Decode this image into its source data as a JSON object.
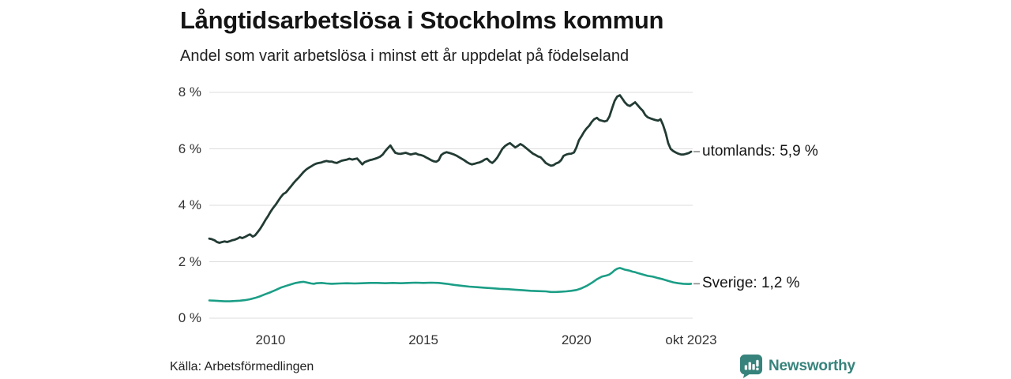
{
  "header": {
    "title": "Långtidsarbetslösa i Stockholms kommun",
    "subtitle": "Andel som varit arbetslösa i minst ett år uppdelat på födelseland"
  },
  "footer": {
    "source": "Källa: Arbetsförmedlingen",
    "brand": "Newsworthy",
    "brand_color": "#37837c"
  },
  "chart_data": {
    "type": "line",
    "title": "Långtidsarbetslösa i Stockholms kommun",
    "subtitle": "Andel som varit arbetslösa i minst ett år uppdelat på födelseland",
    "source": "Källa: Arbetsförmedlingen",
    "grid": true,
    "grid_color": "#dcdcdc",
    "connector_color": "#8a8a8a",
    "x_range": [
      2008.0,
      2023.75
    ],
    "y_range": [
      0,
      8
    ],
    "y_ticks": [
      {
        "value": 0,
        "label": "0 %"
      },
      {
        "value": 2,
        "label": "2 %"
      },
      {
        "value": 4,
        "label": "4 %"
      },
      {
        "value": 6,
        "label": "6 %"
      },
      {
        "value": 8,
        "label": "8 %"
      }
    ],
    "x_ticks": [
      {
        "value": 2010,
        "label": "2010"
      },
      {
        "value": 2015,
        "label": "2015"
      },
      {
        "value": 2020,
        "label": "2020"
      },
      {
        "value": 2023.75,
        "label": "okt 2023"
      }
    ],
    "legend_position": "right-end-labels",
    "series": [
      {
        "name": "utomlands",
        "end_label": "utomlands: 5,9 %",
        "last_value": 5.9,
        "color": "#223b34",
        "stroke_width": 2.8,
        "points": [
          [
            2008.0,
            2.82
          ],
          [
            2008.08,
            2.8
          ],
          [
            2008.17,
            2.76
          ],
          [
            2008.25,
            2.7
          ],
          [
            2008.33,
            2.67
          ],
          [
            2008.42,
            2.7
          ],
          [
            2008.5,
            2.72
          ],
          [
            2008.58,
            2.7
          ],
          [
            2008.67,
            2.73
          ],
          [
            2008.75,
            2.76
          ],
          [
            2008.83,
            2.78
          ],
          [
            2008.92,
            2.82
          ],
          [
            2009.0,
            2.87
          ],
          [
            2009.08,
            2.84
          ],
          [
            2009.17,
            2.88
          ],
          [
            2009.25,
            2.93
          ],
          [
            2009.33,
            2.97
          ],
          [
            2009.42,
            2.89
          ],
          [
            2009.5,
            2.94
          ],
          [
            2009.58,
            3.05
          ],
          [
            2009.67,
            3.18
          ],
          [
            2009.75,
            3.32
          ],
          [
            2009.83,
            3.47
          ],
          [
            2009.92,
            3.62
          ],
          [
            2010.0,
            3.77
          ],
          [
            2010.08,
            3.9
          ],
          [
            2010.17,
            4.02
          ],
          [
            2010.25,
            4.15
          ],
          [
            2010.33,
            4.28
          ],
          [
            2010.42,
            4.4
          ],
          [
            2010.5,
            4.45
          ],
          [
            2010.58,
            4.55
          ],
          [
            2010.67,
            4.67
          ],
          [
            2010.75,
            4.78
          ],
          [
            2010.83,
            4.88
          ],
          [
            2010.92,
            4.98
          ],
          [
            2011.0,
            5.08
          ],
          [
            2011.08,
            5.18
          ],
          [
            2011.17,
            5.27
          ],
          [
            2011.25,
            5.33
          ],
          [
            2011.33,
            5.38
          ],
          [
            2011.42,
            5.44
          ],
          [
            2011.5,
            5.48
          ],
          [
            2011.58,
            5.5
          ],
          [
            2011.67,
            5.52
          ],
          [
            2011.75,
            5.55
          ],
          [
            2011.83,
            5.57
          ],
          [
            2011.92,
            5.55
          ],
          [
            2012.0,
            5.55
          ],
          [
            2012.08,
            5.52
          ],
          [
            2012.17,
            5.5
          ],
          [
            2012.25,
            5.54
          ],
          [
            2012.33,
            5.58
          ],
          [
            2012.42,
            5.6
          ],
          [
            2012.5,
            5.62
          ],
          [
            2012.58,
            5.65
          ],
          [
            2012.67,
            5.62
          ],
          [
            2012.75,
            5.64
          ],
          [
            2012.83,
            5.66
          ],
          [
            2012.92,
            5.55
          ],
          [
            2013.0,
            5.45
          ],
          [
            2013.08,
            5.53
          ],
          [
            2013.17,
            5.57
          ],
          [
            2013.25,
            5.6
          ],
          [
            2013.33,
            5.62
          ],
          [
            2013.42,
            5.65
          ],
          [
            2013.5,
            5.68
          ],
          [
            2013.58,
            5.72
          ],
          [
            2013.67,
            5.8
          ],
          [
            2013.75,
            5.92
          ],
          [
            2013.83,
            6.02
          ],
          [
            2013.92,
            6.12
          ],
          [
            2014.0,
            5.98
          ],
          [
            2014.08,
            5.86
          ],
          [
            2014.17,
            5.83
          ],
          [
            2014.25,
            5.82
          ],
          [
            2014.33,
            5.84
          ],
          [
            2014.42,
            5.86
          ],
          [
            2014.5,
            5.83
          ],
          [
            2014.58,
            5.8
          ],
          [
            2014.67,
            5.82
          ],
          [
            2014.75,
            5.84
          ],
          [
            2014.83,
            5.8
          ],
          [
            2014.92,
            5.78
          ],
          [
            2015.0,
            5.75
          ],
          [
            2015.08,
            5.7
          ],
          [
            2015.17,
            5.65
          ],
          [
            2015.25,
            5.6
          ],
          [
            2015.33,
            5.56
          ],
          [
            2015.42,
            5.54
          ],
          [
            2015.5,
            5.6
          ],
          [
            2015.58,
            5.78
          ],
          [
            2015.67,
            5.85
          ],
          [
            2015.75,
            5.88
          ],
          [
            2015.83,
            5.86
          ],
          [
            2015.92,
            5.83
          ],
          [
            2016.0,
            5.8
          ],
          [
            2016.08,
            5.76
          ],
          [
            2016.17,
            5.7
          ],
          [
            2016.25,
            5.65
          ],
          [
            2016.33,
            5.6
          ],
          [
            2016.42,
            5.53
          ],
          [
            2016.5,
            5.48
          ],
          [
            2016.58,
            5.45
          ],
          [
            2016.67,
            5.47
          ],
          [
            2016.75,
            5.5
          ],
          [
            2016.83,
            5.52
          ],
          [
            2016.92,
            5.56
          ],
          [
            2017.0,
            5.62
          ],
          [
            2017.08,
            5.65
          ],
          [
            2017.17,
            5.55
          ],
          [
            2017.25,
            5.5
          ],
          [
            2017.33,
            5.58
          ],
          [
            2017.42,
            5.7
          ],
          [
            2017.5,
            5.85
          ],
          [
            2017.58,
            6.0
          ],
          [
            2017.67,
            6.1
          ],
          [
            2017.75,
            6.16
          ],
          [
            2017.83,
            6.2
          ],
          [
            2017.92,
            6.12
          ],
          [
            2018.0,
            6.05
          ],
          [
            2018.08,
            6.1
          ],
          [
            2018.17,
            6.17
          ],
          [
            2018.25,
            6.12
          ],
          [
            2018.33,
            6.05
          ],
          [
            2018.42,
            5.97
          ],
          [
            2018.5,
            5.9
          ],
          [
            2018.58,
            5.83
          ],
          [
            2018.67,
            5.78
          ],
          [
            2018.75,
            5.73
          ],
          [
            2018.83,
            5.7
          ],
          [
            2018.92,
            5.6
          ],
          [
            2019.0,
            5.5
          ],
          [
            2019.08,
            5.45
          ],
          [
            2019.17,
            5.4
          ],
          [
            2019.25,
            5.42
          ],
          [
            2019.33,
            5.48
          ],
          [
            2019.42,
            5.52
          ],
          [
            2019.5,
            5.6
          ],
          [
            2019.58,
            5.75
          ],
          [
            2019.67,
            5.8
          ],
          [
            2019.75,
            5.82
          ],
          [
            2019.83,
            5.83
          ],
          [
            2019.92,
            5.87
          ],
          [
            2020.0,
            6.05
          ],
          [
            2020.08,
            6.3
          ],
          [
            2020.17,
            6.45
          ],
          [
            2020.25,
            6.6
          ],
          [
            2020.33,
            6.72
          ],
          [
            2020.42,
            6.82
          ],
          [
            2020.5,
            6.95
          ],
          [
            2020.58,
            7.05
          ],
          [
            2020.67,
            7.1
          ],
          [
            2020.75,
            7.02
          ],
          [
            2020.83,
            7.0
          ],
          [
            2020.92,
            6.97
          ],
          [
            2021.0,
            7.0
          ],
          [
            2021.08,
            7.15
          ],
          [
            2021.17,
            7.45
          ],
          [
            2021.25,
            7.7
          ],
          [
            2021.33,
            7.85
          ],
          [
            2021.42,
            7.9
          ],
          [
            2021.5,
            7.78
          ],
          [
            2021.58,
            7.65
          ],
          [
            2021.67,
            7.55
          ],
          [
            2021.75,
            7.52
          ],
          [
            2021.83,
            7.58
          ],
          [
            2021.92,
            7.65
          ],
          [
            2022.0,
            7.55
          ],
          [
            2022.08,
            7.45
          ],
          [
            2022.17,
            7.35
          ],
          [
            2022.25,
            7.2
          ],
          [
            2022.33,
            7.12
          ],
          [
            2022.42,
            7.08
          ],
          [
            2022.5,
            7.05
          ],
          [
            2022.58,
            7.02
          ],
          [
            2022.67,
            7.0
          ],
          [
            2022.75,
            7.05
          ],
          [
            2022.83,
            6.85
          ],
          [
            2022.92,
            6.55
          ],
          [
            2023.0,
            6.2
          ],
          [
            2023.08,
            6.0
          ],
          [
            2023.17,
            5.92
          ],
          [
            2023.25,
            5.87
          ],
          [
            2023.33,
            5.83
          ],
          [
            2023.42,
            5.8
          ],
          [
            2023.5,
            5.8
          ],
          [
            2023.58,
            5.82
          ],
          [
            2023.67,
            5.85
          ],
          [
            2023.75,
            5.9
          ]
        ]
      },
      {
        "name": "Sverige",
        "end_label": "Sverige: 1,2 %",
        "last_value": 1.2,
        "color": "#1b9e86",
        "stroke_width": 2.6,
        "points": [
          [
            2008.0,
            0.63
          ],
          [
            2008.17,
            0.62
          ],
          [
            2008.33,
            0.61
          ],
          [
            2008.5,
            0.6
          ],
          [
            2008.67,
            0.6
          ],
          [
            2008.83,
            0.61
          ],
          [
            2009.0,
            0.62
          ],
          [
            2009.17,
            0.64
          ],
          [
            2009.33,
            0.67
          ],
          [
            2009.5,
            0.72
          ],
          [
            2009.67,
            0.78
          ],
          [
            2009.83,
            0.85
          ],
          [
            2010.0,
            0.92
          ],
          [
            2010.17,
            1.0
          ],
          [
            2010.33,
            1.08
          ],
          [
            2010.5,
            1.14
          ],
          [
            2010.67,
            1.2
          ],
          [
            2010.83,
            1.25
          ],
          [
            2011.0,
            1.28
          ],
          [
            2011.08,
            1.29
          ],
          [
            2011.17,
            1.27
          ],
          [
            2011.25,
            1.25
          ],
          [
            2011.33,
            1.23
          ],
          [
            2011.42,
            1.22
          ],
          [
            2011.5,
            1.24
          ],
          [
            2011.67,
            1.25
          ],
          [
            2011.83,
            1.23
          ],
          [
            2012.0,
            1.22
          ],
          [
            2012.25,
            1.23
          ],
          [
            2012.5,
            1.24
          ],
          [
            2012.75,
            1.23
          ],
          [
            2013.0,
            1.24
          ],
          [
            2013.25,
            1.25
          ],
          [
            2013.5,
            1.25
          ],
          [
            2013.75,
            1.24
          ],
          [
            2014.0,
            1.25
          ],
          [
            2014.25,
            1.24
          ],
          [
            2014.5,
            1.25
          ],
          [
            2014.75,
            1.26
          ],
          [
            2015.0,
            1.25
          ],
          [
            2015.25,
            1.26
          ],
          [
            2015.5,
            1.25
          ],
          [
            2015.75,
            1.22
          ],
          [
            2016.0,
            1.18
          ],
          [
            2016.25,
            1.15
          ],
          [
            2016.5,
            1.12
          ],
          [
            2016.75,
            1.1
          ],
          [
            2017.0,
            1.08
          ],
          [
            2017.25,
            1.06
          ],
          [
            2017.5,
            1.04
          ],
          [
            2017.75,
            1.03
          ],
          [
            2018.0,
            1.01
          ],
          [
            2018.25,
            0.99
          ],
          [
            2018.5,
            0.97
          ],
          [
            2018.75,
            0.96
          ],
          [
            2019.0,
            0.95
          ],
          [
            2019.17,
            0.93
          ],
          [
            2019.33,
            0.93
          ],
          [
            2019.5,
            0.94
          ],
          [
            2019.67,
            0.95
          ],
          [
            2019.83,
            0.97
          ],
          [
            2020.0,
            1.0
          ],
          [
            2020.17,
            1.06
          ],
          [
            2020.33,
            1.14
          ],
          [
            2020.5,
            1.25
          ],
          [
            2020.67,
            1.38
          ],
          [
            2020.83,
            1.47
          ],
          [
            2021.0,
            1.52
          ],
          [
            2021.08,
            1.55
          ],
          [
            2021.17,
            1.62
          ],
          [
            2021.25,
            1.7
          ],
          [
            2021.33,
            1.75
          ],
          [
            2021.42,
            1.78
          ],
          [
            2021.5,
            1.75
          ],
          [
            2021.58,
            1.72
          ],
          [
            2021.67,
            1.7
          ],
          [
            2021.75,
            1.68
          ],
          [
            2021.83,
            1.65
          ],
          [
            2021.92,
            1.63
          ],
          [
            2022.0,
            1.6
          ],
          [
            2022.17,
            1.55
          ],
          [
            2022.33,
            1.5
          ],
          [
            2022.5,
            1.47
          ],
          [
            2022.67,
            1.42
          ],
          [
            2022.83,
            1.38
          ],
          [
            2023.0,
            1.32
          ],
          [
            2023.17,
            1.27
          ],
          [
            2023.33,
            1.24
          ],
          [
            2023.5,
            1.22
          ],
          [
            2023.67,
            1.21
          ],
          [
            2023.75,
            1.22
          ]
        ]
      }
    ]
  }
}
